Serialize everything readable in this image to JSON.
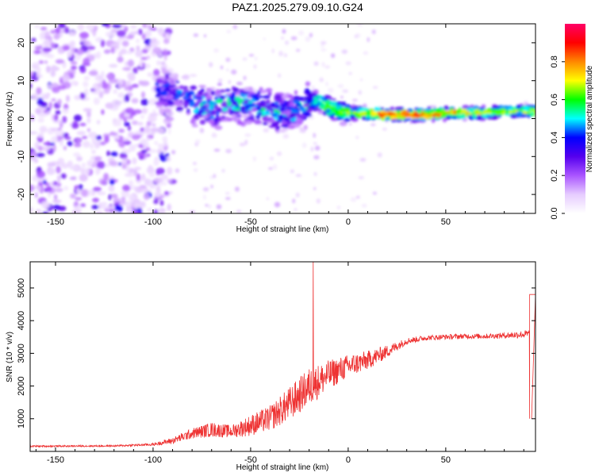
{
  "title": "PAZ1.2025.279.09.10.G24",
  "spectrogram": {
    "type": "heatmap",
    "xlabel": "Height of straight line (km)",
    "ylabel": "Frequency (Hz)",
    "xlim": [
      -163,
      96
    ],
    "ylim": [
      -25,
      25
    ],
    "xticks": [
      -150,
      -100,
      -50,
      0,
      50
    ],
    "yticks": [
      -20,
      -10,
      0,
      10,
      20
    ],
    "colorbar": {
      "label": "Normalized spectral amplitude",
      "range": [
        0,
        1
      ],
      "ticks": [
        0.0,
        0.2,
        0.4,
        0.6,
        0.8
      ],
      "tick_labels": [
        "0.0",
        "0.2",
        "0.4",
        "0.6",
        "0.8"
      ],
      "colors": [
        "#ffffff",
        "#e6ccff",
        "#aa55ff",
        "#5500ee",
        "#0000ff",
        "#00ffff",
        "#00ff00",
        "#ffff00",
        "#ff8800",
        "#ff0000",
        "#ff0066"
      ]
    },
    "ridge": [
      {
        "x": -95,
        "f": 8,
        "a": 0.3
      },
      {
        "x": -85,
        "f": 6,
        "a": 0.35
      },
      {
        "x": -78,
        "f": 4,
        "a": 0.4
      },
      {
        "x": -70,
        "f": 3,
        "a": 0.4
      },
      {
        "x": -60,
        "f": 4,
        "a": 0.4
      },
      {
        "x": -50,
        "f": 4,
        "a": 0.4
      },
      {
        "x": -40,
        "f": 2,
        "a": 0.4
      },
      {
        "x": -30,
        "f": 1,
        "a": 0.35
      },
      {
        "x": -20,
        "f": 4,
        "a": 0.45
      },
      {
        "x": -15,
        "f": 5,
        "a": 0.55
      },
      {
        "x": -10,
        "f": 3,
        "a": 0.6
      },
      {
        "x": -5,
        "f": 2,
        "a": 0.6
      },
      {
        "x": 0,
        "f": 1.5,
        "a": 0.65
      },
      {
        "x": 10,
        "f": 1.5,
        "a": 0.7
      },
      {
        "x": 20,
        "f": 1,
        "a": 0.85
      },
      {
        "x": 30,
        "f": 1,
        "a": 0.85
      },
      {
        "x": 40,
        "f": 1,
        "a": 0.8
      },
      {
        "x": 50,
        "f": 1.5,
        "a": 0.75
      },
      {
        "x": 60,
        "f": 1.5,
        "a": 0.7
      },
      {
        "x": 70,
        "f": 1.5,
        "a": 0.7
      },
      {
        "x": 80,
        "f": 2,
        "a": 0.65
      },
      {
        "x": 90,
        "f": 2,
        "a": 0.65
      }
    ]
  },
  "snr": {
    "type": "line",
    "xlabel": "Height of straight line (km)",
    "ylabel": "SNR (10 * v/v)",
    "xlim": [
      -163,
      96
    ],
    "ylim": [
      0,
      5800
    ],
    "xticks": [
      -150,
      -100,
      -50,
      0,
      50
    ],
    "yticks": [
      1000,
      2000,
      3000,
      4000,
      5000
    ],
    "color": "#ee3333",
    "envelope": [
      {
        "x": -163,
        "y": 150,
        "noise": 40
      },
      {
        "x": -120,
        "y": 160,
        "noise": 40
      },
      {
        "x": -100,
        "y": 200,
        "noise": 60
      },
      {
        "x": -90,
        "y": 300,
        "noise": 150
      },
      {
        "x": -80,
        "y": 500,
        "noise": 250
      },
      {
        "x": -70,
        "y": 600,
        "noise": 350
      },
      {
        "x": -60,
        "y": 550,
        "noise": 300
      },
      {
        "x": -50,
        "y": 700,
        "noise": 500
      },
      {
        "x": -40,
        "y": 900,
        "noise": 600
      },
      {
        "x": -30,
        "y": 1300,
        "noise": 800
      },
      {
        "x": -20,
        "y": 1800,
        "noise": 900
      },
      {
        "x": -10,
        "y": 2200,
        "noise": 700
      },
      {
        "x": 0,
        "y": 2500,
        "noise": 550
      },
      {
        "x": 10,
        "y": 2700,
        "noise": 450
      },
      {
        "x": 20,
        "y": 3000,
        "noise": 300
      },
      {
        "x": 30,
        "y": 3350,
        "noise": 150
      },
      {
        "x": 40,
        "y": 3450,
        "noise": 120
      },
      {
        "x": 50,
        "y": 3480,
        "noise": 120
      },
      {
        "x": 60,
        "y": 3500,
        "noise": 120
      },
      {
        "x": 70,
        "y": 3500,
        "noise": 120
      },
      {
        "x": 80,
        "y": 3520,
        "noise": 130
      },
      {
        "x": 92,
        "y": 3550,
        "noise": 200
      }
    ],
    "spikes": [
      {
        "x": -18,
        "y": 5800
      },
      {
        "x": 93,
        "y": 4800
      },
      {
        "x": 94,
        "y": 1000
      }
    ]
  }
}
